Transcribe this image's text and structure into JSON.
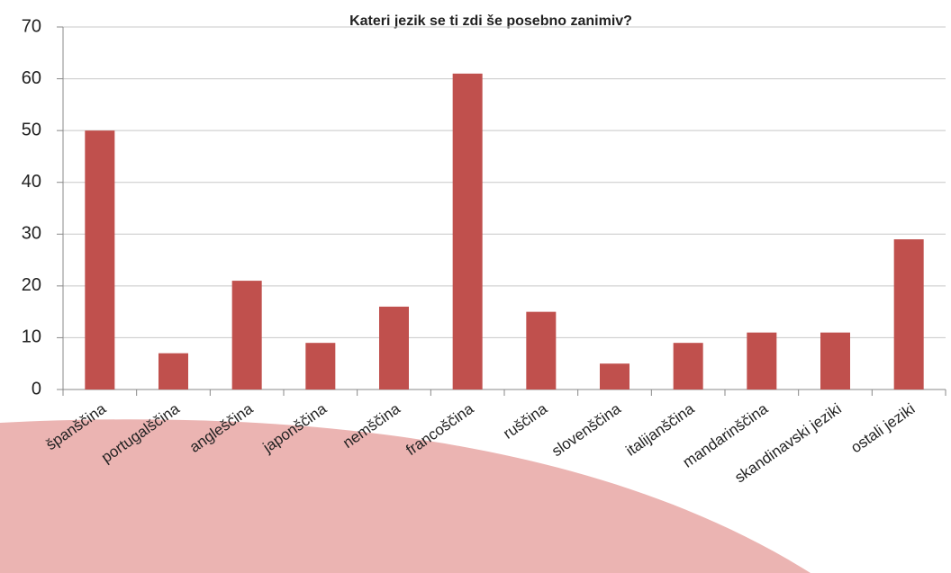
{
  "chart_data": {
    "type": "bar",
    "title": "Kateri jezik se ti zdi še posebno zanimiv?",
    "categories": [
      "španščina",
      "portugalščina",
      "angleščina",
      "japonščina",
      "nemščina",
      "francoščina",
      "ruščina",
      "slovenščina",
      "italijanščina",
      "mandarinščina",
      "skandinavski jeziki",
      "ostali jeziki"
    ],
    "values": [
      50,
      7,
      21,
      9,
      16,
      61,
      15,
      5,
      9,
      11,
      11,
      29
    ],
    "color": "#c0504d",
    "ylim": [
      0,
      70
    ],
    "yticks": [
      0,
      10,
      20,
      30,
      40,
      50,
      60,
      70
    ],
    "grid": true
  }
}
